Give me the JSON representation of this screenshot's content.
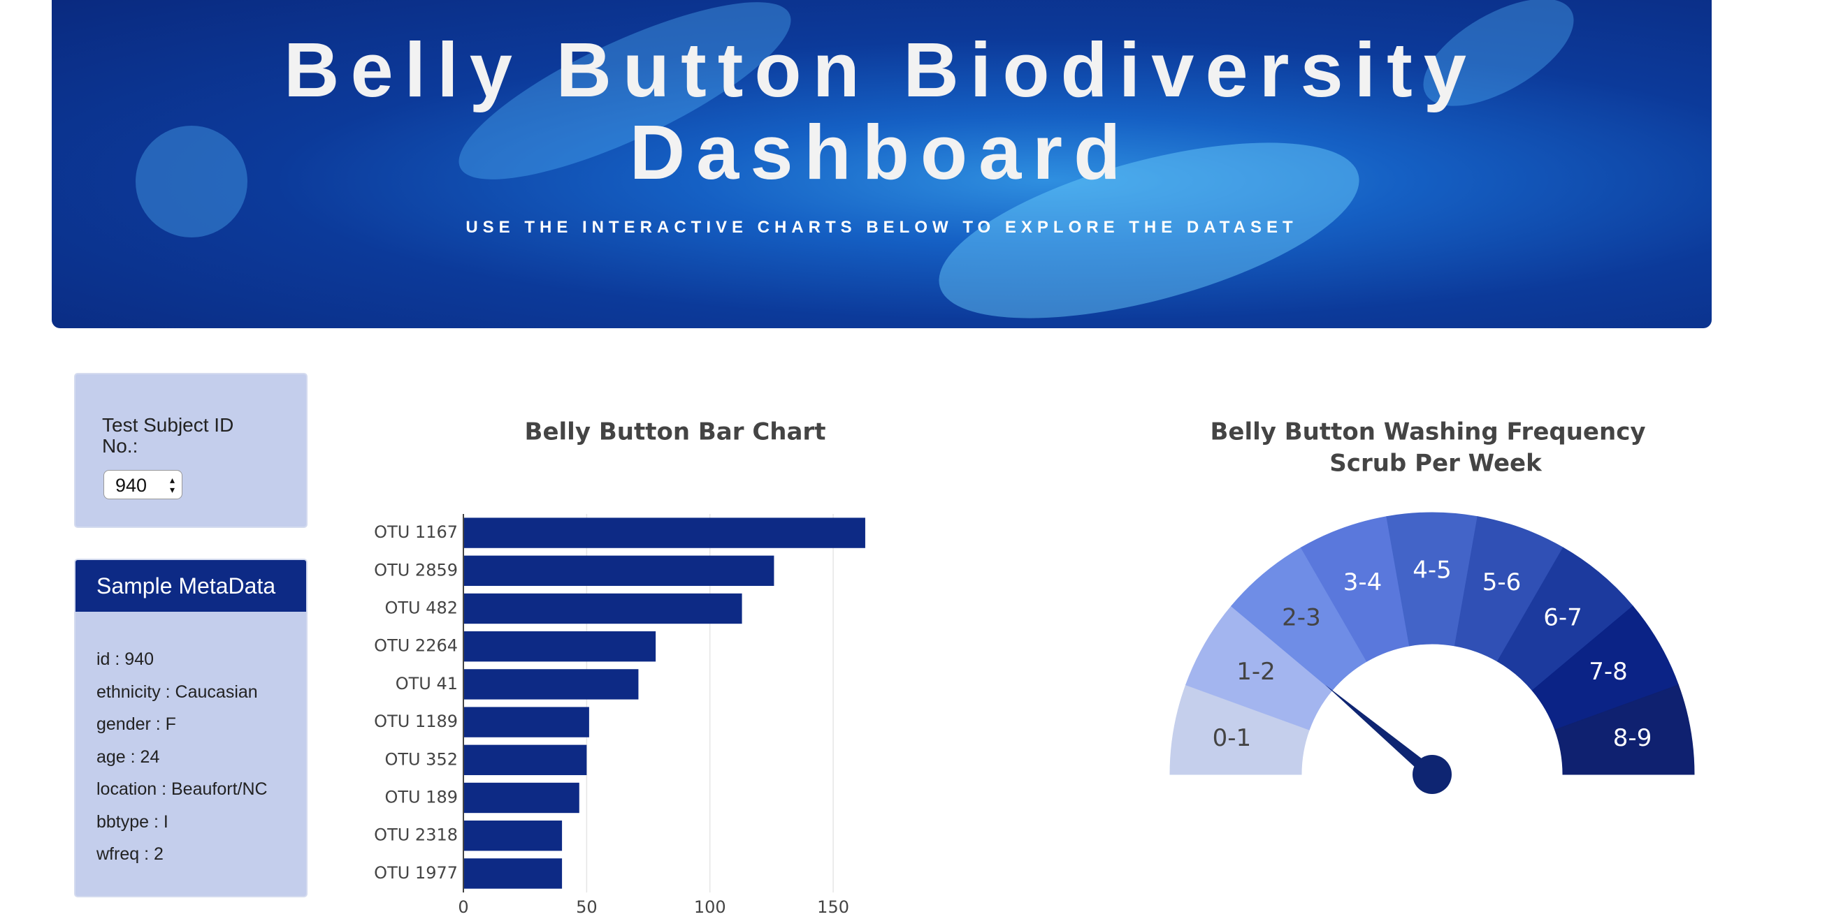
{
  "header": {
    "title": "Belly Button Biodiversity Dashboard",
    "subtitle": "USE THE INTERACTIVE CHARTS BELOW TO EXPLORE THE DATASET"
  },
  "selector": {
    "label": "Test Subject ID No.:",
    "value": "940"
  },
  "metadata": {
    "title": "Sample MetaData",
    "items": [
      "id : 940",
      "ethnicity : Caucasian",
      "gender : F",
      "age : 24",
      "location : Beaufort/NC",
      "bbtype : I",
      "wfreq : 2"
    ]
  },
  "chart_data": [
    {
      "type": "hbar",
      "title": "Belly Button Bar Chart",
      "categories": [
        "OTU 1167",
        "OTU 2859",
        "OTU 482",
        "OTU 2264",
        "OTU 41",
        "OTU 1189",
        "OTU 352",
        "OTU 189",
        "OTU 2318",
        "OTU 1977"
      ],
      "values": [
        163,
        126,
        113,
        78,
        71,
        51,
        50,
        47,
        40,
        40
      ],
      "color": "#0d2a85",
      "xlim": [
        0,
        165
      ],
      "xticks": [
        0,
        50,
        100,
        150
      ],
      "grid": true
    },
    {
      "type": "gauge",
      "title": "Belly Button Washing Frequency",
      "subtitle": "Scrub Per Week",
      "range": [
        0,
        9
      ],
      "categories": [
        "0-1",
        "1-2",
        "2-3",
        "3-4",
        "4-5",
        "5-6",
        "6-7",
        "7-8",
        "8-9"
      ],
      "colors": [
        "#c5cfec",
        "#a3b5ef",
        "#6f8de6",
        "#5a78dc",
        "#4364c8",
        "#3050b5",
        "#1c3a9e",
        "#0b2386",
        "#0f2170"
      ],
      "label_colors": [
        "#444444",
        "#444444",
        "#444444",
        "#ffffff",
        "#ffffff",
        "#ffffff",
        "#ffffff",
        "#ffffff",
        "#ffffff"
      ],
      "value": 2,
      "needle_color": "#0e2572"
    }
  ]
}
